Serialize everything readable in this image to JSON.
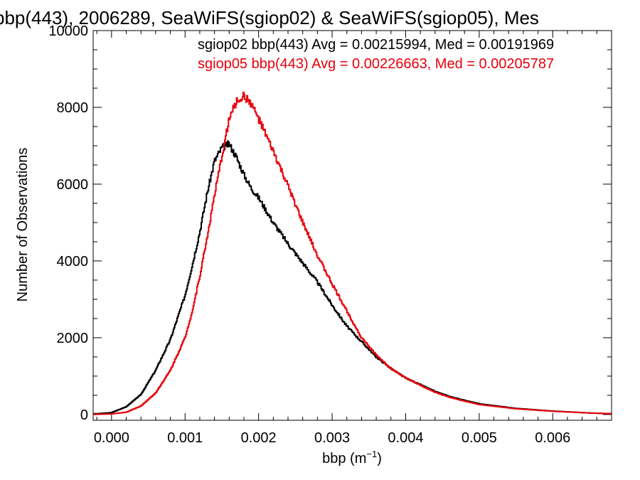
{
  "chart_data": {
    "type": "line",
    "title": "bbp(443), 2006289, SeaWiFS(sgiop02) & SeaWiFS(sgiop05), Mes",
    "xlabel": "bbp (m",
    "xlabel_sup": "−1",
    "xlabel_close": ")",
    "ylabel": "Number of Observations",
    "xlim": [
      -0.00025,
      0.0068
    ],
    "ylim": [
      -150,
      10000
    ],
    "x_ticks": [
      0.0,
      0.001,
      0.002,
      0.003,
      0.004,
      0.005,
      0.006
    ],
    "x_tick_labels": [
      "0.000",
      "0.001",
      "0.002",
      "0.003",
      "0.004",
      "0.005",
      "0.006"
    ],
    "y_ticks": [
      0,
      2000,
      4000,
      6000,
      8000,
      10000
    ],
    "y_tick_labels": [
      "0",
      "2000",
      "4000",
      "6000",
      "8000",
      "10000"
    ],
    "grid": false,
    "legend_position": "top-right",
    "annotations": [
      {
        "text": "sgiop02 bbp(443) Avg = 0.00215994, Med = 0.00191969",
        "color": "#000000"
      },
      {
        "text": "sgiop05 bbp(443) Avg = 0.00226663, Med = 0.00205787",
        "color": "#e8000b"
      }
    ],
    "series": [
      {
        "name": "sgiop02",
        "color": "#000000",
        "x": [
          -0.0002,
          0.0,
          0.0002,
          0.0004,
          0.0006,
          0.0008,
          0.001,
          0.0011,
          0.0012,
          0.0013,
          0.0014,
          0.0015,
          0.0016,
          0.0017,
          0.0018,
          0.0019,
          0.002,
          0.0022,
          0.0024,
          0.0026,
          0.0028,
          0.003,
          0.0032,
          0.0034,
          0.0036,
          0.0038,
          0.004,
          0.0042,
          0.0044,
          0.0046,
          0.0048,
          0.005,
          0.0055,
          0.006,
          0.0065,
          0.0068
        ],
        "y": [
          20,
          50,
          200,
          520,
          1150,
          1950,
          3100,
          3900,
          4750,
          5750,
          6600,
          6950,
          7050,
          6700,
          6250,
          5900,
          5650,
          5000,
          4450,
          3950,
          3450,
          2850,
          2300,
          1900,
          1500,
          1200,
          950,
          780,
          600,
          470,
          370,
          280,
          160,
          90,
          40,
          20
        ]
      },
      {
        "name": "sgiop05",
        "color": "#e8000b",
        "x": [
          -0.0002,
          0.0,
          0.0002,
          0.0004,
          0.0006,
          0.0008,
          0.001,
          0.0011,
          0.0012,
          0.0013,
          0.0014,
          0.0015,
          0.0016,
          0.0017,
          0.0018,
          0.0019,
          0.002,
          0.0022,
          0.0024,
          0.0026,
          0.0028,
          0.003,
          0.0032,
          0.0034,
          0.0036,
          0.0038,
          0.004,
          0.0042,
          0.0044,
          0.0046,
          0.0048,
          0.005,
          0.0055,
          0.006,
          0.0065,
          0.0068
        ],
        "y": [
          5,
          15,
          60,
          220,
          560,
          1150,
          2000,
          2700,
          3600,
          4600,
          5700,
          6700,
          7700,
          8150,
          8300,
          8100,
          7700,
          6850,
          5950,
          5000,
          4150,
          3400,
          2700,
          2000,
          1550,
          1200,
          950,
          760,
          580,
          450,
          350,
          260,
          150,
          85,
          40,
          20
        ]
      }
    ]
  }
}
